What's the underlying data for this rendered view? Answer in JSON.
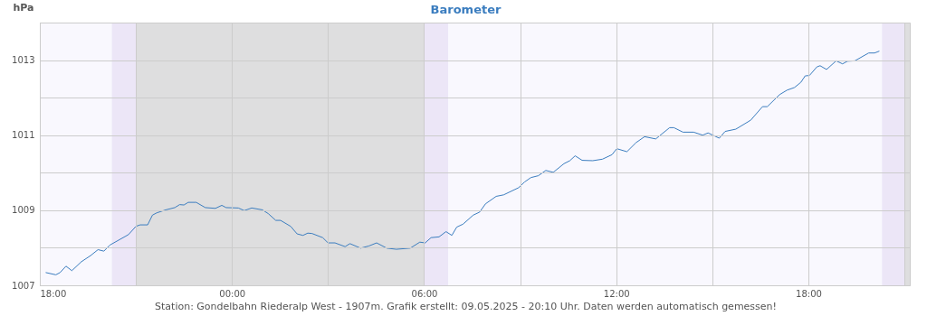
{
  "chart_data": {
    "type": "line",
    "title": "Barometer",
    "ylabel": "hPa",
    "annotations": [
      "Station: Gondelbahn Riederalp West - 1907m. Grafik erstellt: 09.05.2025 - 20:10 Uhr. Daten werden automatisch gemessen!"
    ],
    "x": [
      "2025-05-08T18:11",
      "2025-05-08T18:30",
      "2025-05-08T18:38",
      "2025-05-08T18:49",
      "2025-05-08T19:00",
      "2025-05-08T19:18",
      "2025-05-08T19:35",
      "2025-05-08T19:49",
      "2025-05-08T20:00",
      "2025-05-08T20:11",
      "2025-05-08T20:31",
      "2025-05-08T20:46",
      "2025-05-08T21:00",
      "2025-05-08T21:08",
      "2025-05-08T21:22",
      "2025-05-08T21:31",
      "2025-05-08T21:39",
      "2025-05-08T21:56",
      "2025-05-08T22:13",
      "2025-05-08T22:22",
      "2025-05-08T22:30",
      "2025-05-08T22:38",
      "2025-05-08T22:53",
      "2025-05-08T23:10",
      "2025-05-08T23:29",
      "2025-05-08T23:41",
      "2025-05-08T23:49",
      "2025-05-09T00:12",
      "2025-05-09T00:23",
      "2025-05-09T00:37",
      "2025-05-09T00:57",
      "2025-05-09T01:08",
      "2025-05-09T01:22",
      "2025-05-09T01:31",
      "2025-05-09T01:50",
      "2025-05-09T02:02",
      "2025-05-09T02:13",
      "2025-05-09T02:22",
      "2025-05-09T02:30",
      "2025-05-09T02:50",
      "2025-05-09T03:00",
      "2025-05-09T03:13",
      "2025-05-09T03:32",
      "2025-05-09T03:41",
      "2025-05-09T04:01",
      "2025-05-09T04:17",
      "2025-05-09T04:31",
      "2025-05-09T04:50",
      "2025-05-09T05:08",
      "2025-05-09T05:34",
      "2025-05-09T05:52",
      "2025-05-09T06:02",
      "2025-05-09T06:13",
      "2025-05-09T06:28",
      "2025-05-09T06:41",
      "2025-05-09T06:52",
      "2025-05-09T07:01",
      "2025-05-09T07:13",
      "2025-05-09T07:32",
      "2025-05-09T07:44",
      "2025-05-09T07:55",
      "2025-05-09T08:15",
      "2025-05-09T08:29",
      "2025-05-09T08:57",
      "2025-05-09T09:08",
      "2025-05-09T09:20",
      "2025-05-09T09:34",
      "2025-05-09T09:48",
      "2025-05-09T10:02",
      "2025-05-09T10:22",
      "2025-05-09T10:33",
      "2025-05-09T10:43",
      "2025-05-09T10:56",
      "2025-05-09T11:16",
      "2025-05-09T11:34",
      "2025-05-09T11:52",
      "2025-05-09T12:01",
      "2025-05-09T12:20",
      "2025-05-09T12:37",
      "2025-05-09T12:53",
      "2025-05-09T13:14",
      "2025-05-09T13:40",
      "2025-05-09T13:48",
      "2025-05-09T14:05",
      "2025-05-09T14:25",
      "2025-05-09T14:42",
      "2025-05-09T14:52",
      "2025-05-09T15:13",
      "2025-05-09T15:24",
      "2025-05-09T15:44",
      "2025-05-09T16:12",
      "2025-05-09T16:34",
      "2025-05-09T16:43",
      "2025-05-09T17:06",
      "2025-05-09T17:20",
      "2025-05-09T17:34",
      "2025-05-09T17:46",
      "2025-05-09T17:54",
      "2025-05-09T18:02",
      "2025-05-09T18:16",
      "2025-05-09T18:22",
      "2025-05-09T18:34",
      "2025-05-09T18:52",
      "2025-05-09T19:04",
      "2025-05-09T19:13",
      "2025-05-09T19:27",
      "2025-05-09T19:53",
      "2025-05-09T20:04",
      "2025-05-09T20:13"
    ],
    "series": [
      {
        "color": "#3b7dbf",
        "values": [
          1007.34,
          1007.28,
          1007.34,
          1007.51,
          1007.39,
          1007.63,
          1007.79,
          1007.95,
          1007.91,
          1008.07,
          1008.23,
          1008.35,
          1008.57,
          1008.61,
          1008.61,
          1008.87,
          1008.93,
          1009.01,
          1009.07,
          1009.15,
          1009.14,
          1009.21,
          1009.21,
          1009.07,
          1009.05,
          1009.13,
          1009.07,
          1009.06,
          1008.99,
          1009.06,
          1009.01,
          1008.91,
          1008.73,
          1008.73,
          1008.57,
          1008.37,
          1008.33,
          1008.39,
          1008.38,
          1008.27,
          1008.13,
          1008.13,
          1008.03,
          1008.11,
          1007.99,
          1008.05,
          1008.13,
          1007.99,
          1007.96,
          1007.99,
          1008.15,
          1008.13,
          1008.27,
          1008.29,
          1008.43,
          1008.33,
          1008.55,
          1008.63,
          1008.87,
          1008.95,
          1009.17,
          1009.37,
          1009.41,
          1009.6,
          1009.75,
          1009.87,
          1009.92,
          1010.06,
          1010.01,
          1010.24,
          1010.32,
          1010.45,
          1010.33,
          1010.32,
          1010.36,
          1010.48,
          1010.64,
          1010.56,
          1010.8,
          1010.96,
          1010.9,
          1011.2,
          1011.2,
          1011.08,
          1011.08,
          1011.0,
          1011.06,
          1010.92,
          1011.1,
          1011.16,
          1011.4,
          1011.76,
          1011.76,
          1012.08,
          1012.2,
          1012.27,
          1012.41,
          1012.58,
          1012.59,
          1012.82,
          1012.85,
          1012.75,
          1012.98,
          1012.9,
          1012.97,
          1012.98,
          1013.19,
          1013.19,
          1013.24
        ]
      }
    ],
    "xlim": [
      "2025-05-08T18:00",
      "2025-05-09T21:10"
    ],
    "xticks": [
      {
        "value": "2025-05-08T18:00",
        "label": "18:00"
      },
      {
        "value": "2025-05-08T21:00",
        "label": null
      },
      {
        "value": "2025-05-09T00:00",
        "label": "00:00"
      },
      {
        "value": "2025-05-09T03:00",
        "label": null
      },
      {
        "value": "2025-05-09T06:00",
        "label": "06:00"
      },
      {
        "value": "2025-05-09T09:00",
        "label": null
      },
      {
        "value": "2025-05-09T12:00",
        "label": "12:00"
      },
      {
        "value": "2025-05-09T15:00",
        "label": null
      },
      {
        "value": "2025-05-09T18:00",
        "label": "18:00"
      },
      {
        "value": "2025-05-09T21:00",
        "label": null
      }
    ],
    "ylim": [
      1007,
      1014
    ],
    "yticks": [
      1007,
      {
        "value": 1008,
        "label": null
      },
      1009,
      {
        "value": 1010,
        "label": null
      },
      1011,
      {
        "value": 1012,
        "label": null
      },
      1013,
      {
        "value": 1014,
        "label": null
      }
    ],
    "bands": [
      {
        "axis": "x",
        "from": "2025-05-08T20:15",
        "to": "2025-05-08T21:00",
        "color": "#ece6f7"
      },
      {
        "axis": "x",
        "from": "2025-05-08T21:00",
        "to": "2025-05-09T06:00",
        "color": "#dededf"
      },
      {
        "axis": "x",
        "from": "2025-05-09T06:00",
        "to": "2025-05-09T06:45",
        "color": "#ece6f7"
      },
      {
        "axis": "x",
        "from": "2025-05-09T20:18",
        "to": "2025-05-09T21:00",
        "color": "#ece6f7"
      },
      {
        "axis": "x",
        "from": "2025-05-09T21:00",
        "to": "2025-05-09T21:10",
        "color": "#dededf"
      }
    ],
    "grid": true,
    "marker": "none",
    "line_style": "solid"
  }
}
